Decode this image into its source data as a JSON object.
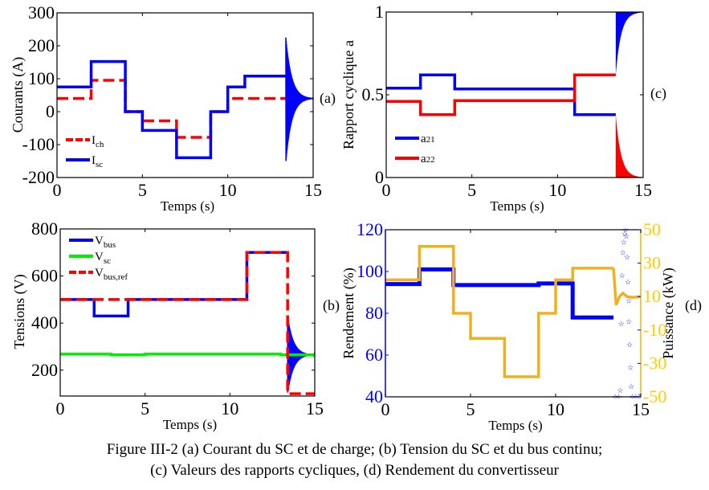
{
  "caption": {
    "line1": "Figure III-2 (a) Courant du SC et de charge; (b) Tension du SC et du bus continu;",
    "line2": "(c) Valeurs des rapports cycliques, (d) Rendement du convertisseur"
  },
  "chart_data": [
    {
      "id": "a",
      "panel_label": "(a)",
      "type": "line",
      "xlabel": "Temps (s)",
      "ylabel": "Courants (A)",
      "xlim": [
        0,
        15
      ],
      "ylim": [
        -200,
        300
      ],
      "xticks": [
        0,
        5,
        10,
        15
      ],
      "yticks": [
        -200,
        -100,
        0,
        100,
        200,
        300
      ],
      "legend": {
        "placement": "bottom-left",
        "entries": [
          {
            "name": "I",
            "sub": "ch",
            "color": "#ff0000",
            "dashed": true
          },
          {
            "name": "I",
            "sub": "sc",
            "color": "#0000ff",
            "dashed": false
          }
        ]
      },
      "series": [
        {
          "name": "Ich",
          "color": "#ff0000",
          "dashed": true,
          "steps": [
            [
              0,
              40
            ],
            [
              2,
              95
            ],
            [
              4,
              0
            ],
            [
              5,
              -28
            ],
            [
              7,
              -78
            ],
            [
              9,
              0
            ],
            [
              10,
              40
            ],
            [
              15,
              40
            ]
          ]
        },
        {
          "name": "Isc",
          "color": "#0000ff",
          "dashed": false,
          "steps": [
            [
              0,
              75
            ],
            [
              2,
              152
            ],
            [
              4,
              0
            ],
            [
              5,
              -57
            ],
            [
              7,
              -140
            ],
            [
              9,
              0
            ],
            [
              10,
              75
            ],
            [
              11,
              108
            ],
            [
              13.4,
              108
            ]
          ],
          "oscillation": {
            "start": 13.4,
            "end": 15,
            "upper_peak": 225,
            "lower_peak": -155,
            "settle": 40
          }
        }
      ]
    },
    {
      "id": "c",
      "panel_label": "(c)",
      "type": "line",
      "xlabel": "Temps (s)",
      "ylabel": "Rapport cyclique a",
      "xlim": [
        0,
        15
      ],
      "ylim": [
        0,
        1
      ],
      "xticks": [
        0,
        5,
        10,
        15
      ],
      "yticks": [
        0,
        0.5,
        1
      ],
      "legend": {
        "placement": "bottom-left",
        "entries": [
          {
            "name": "a",
            "sub": "21",
            "color": "#0000ff",
            "dashed": false
          },
          {
            "name": "a",
            "sub": "22",
            "color": "#ff0000",
            "dashed": false
          }
        ]
      },
      "series": [
        {
          "name": "a21",
          "color": "#0000ff",
          "steps": [
            [
              0,
              0.54
            ],
            [
              2,
              0.62
            ],
            [
              4,
              0.535
            ],
            [
              11,
              0.38
            ],
            [
              13.4,
              0.38
            ]
          ],
          "envelope": {
            "start": 13.4,
            "end": 15,
            "from": 0.62,
            "to": 1.0
          }
        },
        {
          "name": "a22",
          "color": "#ff0000",
          "steps": [
            [
              0,
              0.46
            ],
            [
              2,
              0.38
            ],
            [
              4,
              0.465
            ],
            [
              11,
              0.62
            ],
            [
              13.4,
              0.62
            ]
          ],
          "envelope": {
            "start": 13.4,
            "end": 15,
            "from": 0.38,
            "to": 0.0
          }
        }
      ]
    },
    {
      "id": "b",
      "panel_label": "(b)",
      "type": "line",
      "xlabel": "Temps (s)",
      "ylabel": "Tensions (V)",
      "xlim": [
        0,
        15
      ],
      "ylim": [
        90,
        800
      ],
      "xticks": [
        0,
        5,
        10,
        15
      ],
      "yticks": [
        200,
        400,
        600,
        800
      ],
      "legend": {
        "placement": "top-left",
        "entries": [
          {
            "name": "V",
            "sub": "bus",
            "color": "#0000ff",
            "dashed": false
          },
          {
            "name": "V",
            "sub": "sc",
            "color": "#00ee00",
            "dashed": false
          },
          {
            "name": "V",
            "sub": "bus,ref",
            "color": "#ff0000",
            "dashed": true
          }
        ]
      },
      "series": [
        {
          "name": "Vbus",
          "color": "#0000ff",
          "steps": [
            [
              0,
              500
            ],
            [
              2,
              430
            ],
            [
              4,
              500
            ],
            [
              11,
              700
            ],
            [
              13.4,
              700
            ]
          ],
          "oscillation": {
            "start": 13.4,
            "end": 15,
            "upper_peak": 430,
            "lower_peak": 100,
            "settle": 265
          }
        },
        {
          "name": "Vsc",
          "color": "#00ee00",
          "steps": [
            [
              0,
              268
            ],
            [
              3,
              265
            ],
            [
              5,
              268
            ],
            [
              13,
              265
            ],
            [
              15,
              265
            ]
          ]
        },
        {
          "name": "Vbus,ref",
          "color": "#ff0000",
          "dashed": true,
          "steps": [
            [
              0,
              500
            ],
            [
              11,
              700
            ],
            [
              13.4,
              100
            ],
            [
              15,
              100
            ]
          ]
        }
      ]
    },
    {
      "id": "d",
      "panel_label": "(d)",
      "type": "line",
      "xlabel": "Temps (s)",
      "ylabel": "Rendement (%)",
      "y2label": "Puissance (kW)",
      "xlim": [
        0,
        15
      ],
      "ylim": [
        40,
        120
      ],
      "y2lim": [
        -50,
        50
      ],
      "xticks": [
        0,
        5,
        10,
        15
      ],
      "yticks": [
        40,
        60,
        80,
        100,
        120
      ],
      "y2ticks": [
        -50,
        -30,
        -10,
        10,
        30,
        50
      ],
      "left_axis_color": "#0000ff",
      "right_axis_color": "#ffcc00",
      "series": [
        {
          "name": "Rendement",
          "color": "#0000ff",
          "axis": "left",
          "marker": "star",
          "steps": [
            [
              0,
              94
            ],
            [
              2,
              101
            ],
            [
              4,
              93.5
            ],
            [
              9,
              94.3
            ],
            [
              11,
              78
            ],
            [
              13.4,
              78
            ]
          ],
          "scatter": [
            [
              13.5,
              40
            ],
            [
              13.7,
              40
            ],
            [
              13.8,
              43
            ],
            [
              13.85,
              75
            ],
            [
              13.9,
              98
            ],
            [
              13.95,
              109
            ],
            [
              14.0,
              114
            ],
            [
              14.05,
              118
            ],
            [
              14.1,
              120
            ],
            [
              14.15,
              117
            ],
            [
              14.2,
              107
            ],
            [
              14.25,
              95
            ],
            [
              14.3,
              86
            ],
            [
              14.3,
              76
            ],
            [
              14.35,
              65
            ],
            [
              14.4,
              54
            ],
            [
              14.45,
              45
            ],
            [
              14.5,
              40
            ],
            [
              14.7,
              40
            ],
            [
              14.9,
              40
            ],
            [
              15,
              41
            ]
          ]
        },
        {
          "name": "Puissance",
          "color": "#f0b020",
          "axis": "right",
          "steps": [
            [
              0,
              20
            ],
            [
              2,
              40
            ],
            [
              4,
              0
            ],
            [
              5,
              -15
            ],
            [
              7,
              -38
            ],
            [
              9,
              0
            ],
            [
              10,
              20
            ],
            [
              11,
              27
            ],
            [
              13.4,
              27
            ]
          ],
          "transient": [
            [
              13.4,
              27
            ],
            [
              13.55,
              5
            ],
            [
              13.75,
              10
            ],
            [
              13.95,
              12
            ],
            [
              14.2,
              10
            ],
            [
              14.5,
              9.5
            ],
            [
              15,
              10
            ]
          ]
        }
      ]
    }
  ]
}
